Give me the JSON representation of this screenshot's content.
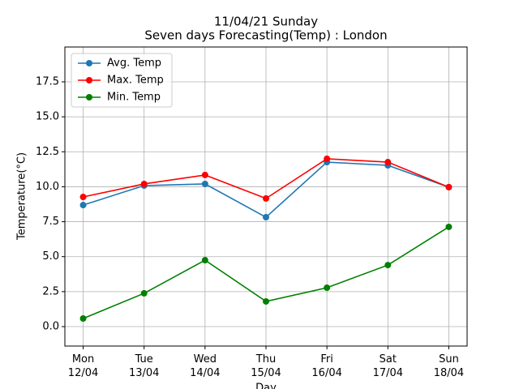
{
  "chart_data": {
    "type": "line",
    "title": [
      "11/04/21 Sunday",
      "Seven days Forecasting(Temp) : London"
    ],
    "x_label": "Day",
    "y_label": "Temperature(°C)",
    "categories": [
      "Mon\n12/04",
      "Tue\n13/04",
      "Wed\n14/04",
      "Thu\n15/04",
      "Fri\n16/04",
      "Sat\n17/04",
      "Sun\n18/04"
    ],
    "series": [
      {
        "name": "Avg. Temp",
        "color": "#1f77b4",
        "values": [
          8.69,
          10.08,
          10.2,
          7.82,
          11.76,
          11.53,
          9.97
        ]
      },
      {
        "name": "Max. Temp",
        "color": "#ff0000",
        "values": [
          9.27,
          10.2,
          10.84,
          9.16,
          12.0,
          11.76,
          9.97
        ]
      },
      {
        "name": "Min. Temp",
        "color": "#008000",
        "values": [
          0.58,
          2.38,
          4.75,
          1.8,
          2.78,
          4.4,
          7.13
        ]
      }
    ],
    "ylim": [
      -1.39,
      19.99
    ],
    "yticks": [
      {
        "value": 0,
        "label": "0.0"
      },
      {
        "value": 2.5,
        "label": "2.5"
      },
      {
        "value": 5,
        "label": "5.0"
      },
      {
        "value": 7.5,
        "label": "7.5"
      },
      {
        "value": 10,
        "label": "10.0"
      },
      {
        "value": 12.5,
        "label": "12.5"
      },
      {
        "value": 15,
        "label": "15.0"
      },
      {
        "value": 17.5,
        "label": "17.5"
      }
    ],
    "grid": true,
    "legend": "upper-left"
  }
}
